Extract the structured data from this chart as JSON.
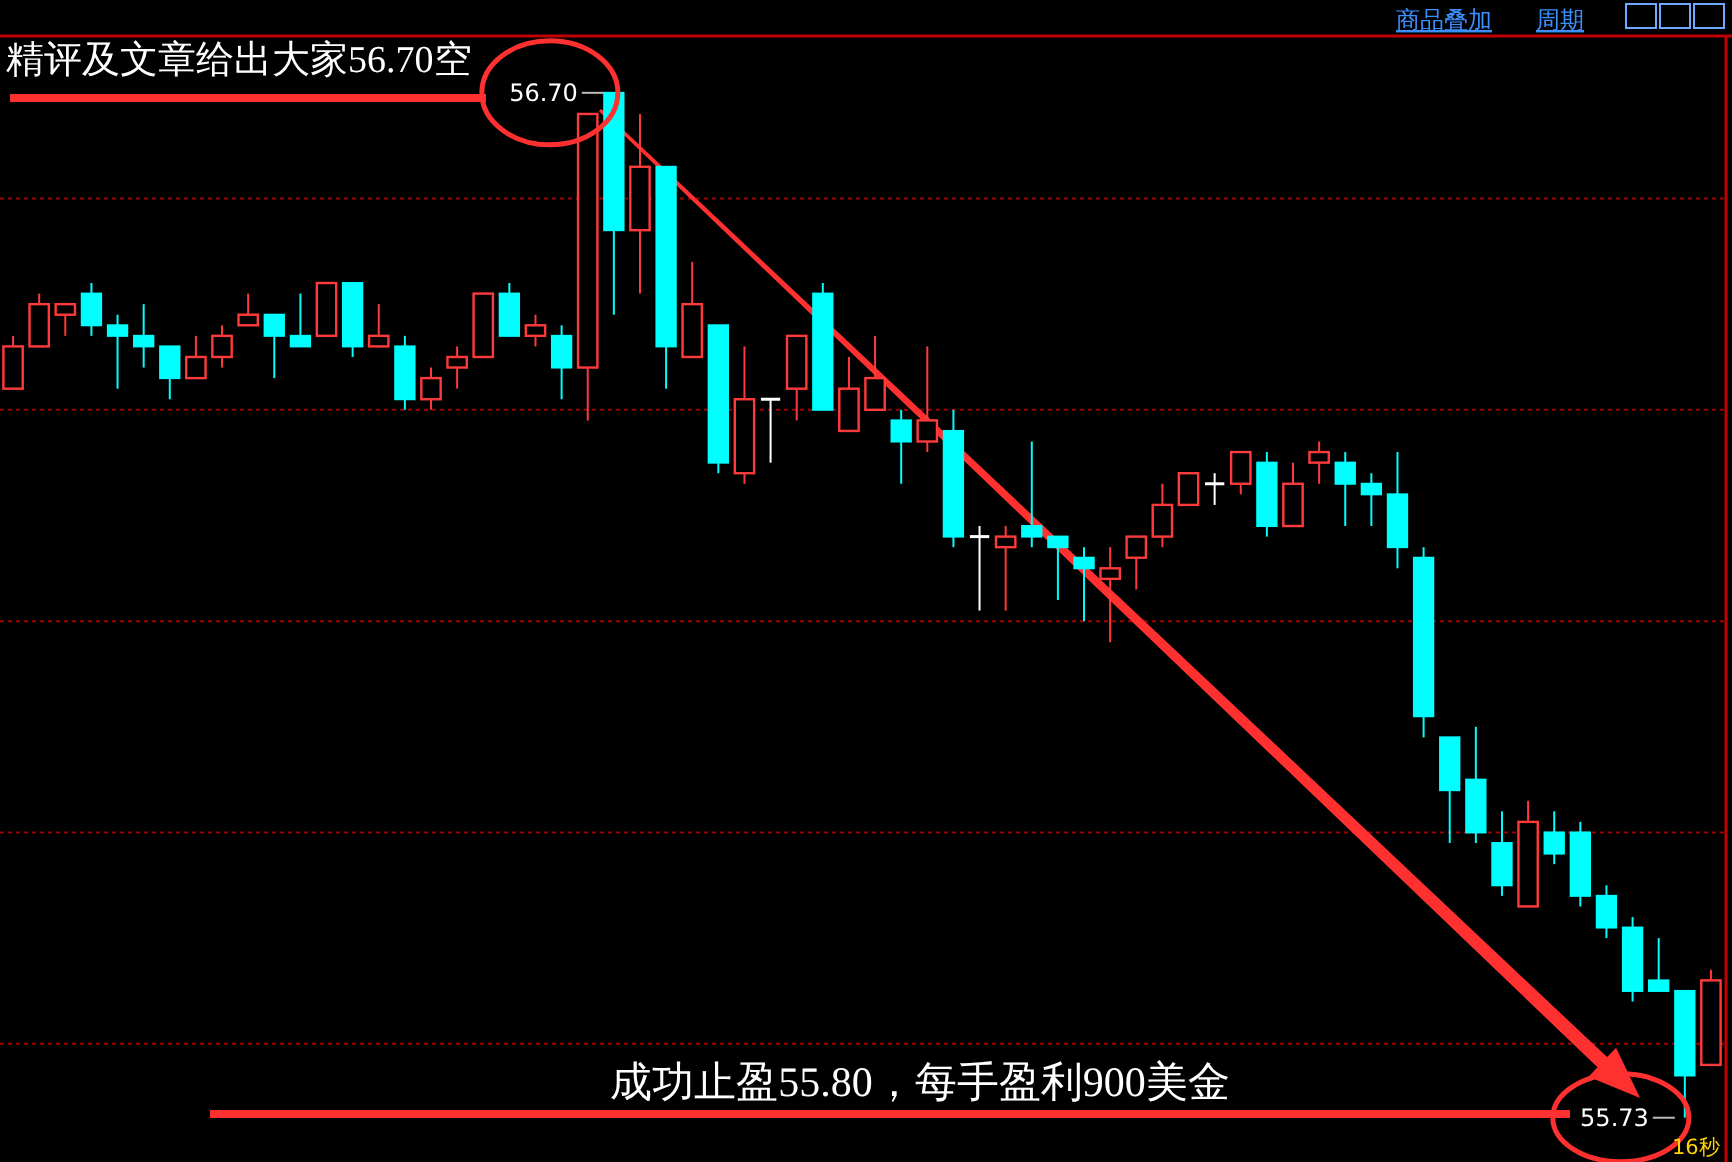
{
  "chart_data": {
    "type": "candlestick",
    "categories": [
      null,
      null,
      null,
      null,
      null,
      null,
      null,
      null,
      null,
      null,
      null,
      null,
      null,
      null,
      null,
      null,
      null,
      null,
      null,
      null,
      null,
      null,
      null,
      null,
      null,
      null,
      null,
      null,
      null,
      null,
      null,
      null,
      null,
      null,
      null,
      null,
      null,
      null,
      null,
      null,
      null,
      null,
      null,
      null,
      null,
      null,
      null,
      null,
      null,
      null,
      null,
      null,
      null,
      null,
      null,
      null,
      null,
      null,
      null,
      null,
      null,
      null,
      null,
      null,
      null,
      null
    ],
    "ohlc": [
      [
        56.42,
        56.47,
        56.42,
        56.46
      ],
      [
        56.46,
        56.51,
        56.46,
        56.5
      ],
      [
        56.49,
        56.5,
        56.47,
        56.5
      ],
      [
        56.51,
        56.52,
        56.47,
        56.48
      ],
      [
        56.48,
        56.49,
        56.42,
        56.47
      ],
      [
        56.47,
        56.5,
        56.44,
        56.46
      ],
      [
        56.46,
        56.46,
        56.41,
        56.43
      ],
      [
        56.43,
        56.47,
        56.43,
        56.45
      ],
      [
        56.45,
        56.48,
        56.44,
        56.47
      ],
      [
        56.48,
        56.51,
        56.48,
        56.49
      ],
      [
        56.49,
        56.49,
        56.43,
        56.47
      ],
      [
        56.47,
        56.51,
        56.46,
        56.46
      ],
      [
        56.47,
        56.52,
        56.47,
        56.52
      ],
      [
        56.52,
        56.52,
        56.45,
        56.46
      ],
      [
        56.46,
        56.5,
        56.46,
        56.47
      ],
      [
        56.46,
        56.47,
        56.4,
        56.41
      ],
      [
        56.41,
        56.44,
        56.4,
        56.43
      ],
      [
        56.44,
        56.46,
        56.42,
        56.45
      ],
      [
        56.45,
        56.51,
        56.45,
        56.51
      ],
      [
        56.51,
        56.52,
        56.47,
        56.47
      ],
      [
        56.47,
        56.49,
        56.46,
        56.48
      ],
      [
        56.47,
        56.48,
        56.41,
        56.44
      ],
      [
        56.44,
        56.68,
        56.39,
        56.68
      ],
      [
        56.7,
        56.7,
        56.49,
        56.57
      ],
      [
        56.57,
        56.68,
        56.51,
        56.63
      ],
      [
        56.63,
        56.63,
        56.42,
        56.46
      ],
      [
        56.45,
        56.54,
        56.45,
        56.5
      ],
      [
        56.48,
        56.48,
        56.34,
        56.35
      ],
      [
        56.34,
        56.46,
        56.33,
        56.41
      ],
      [
        56.41,
        56.41,
        56.35,
        56.41
      ],
      [
        56.42,
        56.47,
        56.39,
        56.47
      ],
      [
        56.51,
        56.52,
        56.4,
        56.4
      ],
      [
        56.38,
        56.45,
        56.38,
        56.42
      ],
      [
        56.4,
        56.47,
        56.4,
        56.43
      ],
      [
        56.39,
        56.4,
        56.33,
        56.37
      ],
      [
        56.37,
        56.46,
        56.36,
        56.39
      ],
      [
        56.38,
        56.4,
        56.27,
        56.28
      ],
      [
        56.28,
        56.29,
        56.21,
        56.28
      ],
      [
        56.27,
        56.29,
        56.21,
        56.28
      ],
      [
        56.29,
        56.37,
        56.27,
        56.28
      ],
      [
        56.28,
        56.28,
        56.22,
        56.27
      ],
      [
        56.26,
        56.27,
        56.2,
        56.25
      ],
      [
        56.24,
        56.27,
        56.18,
        56.25
      ],
      [
        56.26,
        56.28,
        56.23,
        56.28
      ],
      [
        56.28,
        56.33,
        56.27,
        56.31
      ],
      [
        56.31,
        56.34,
        56.31,
        56.34
      ],
      [
        56.33,
        56.34,
        56.31,
        56.33
      ],
      [
        56.33,
        56.36,
        56.32,
        56.36
      ],
      [
        56.35,
        56.36,
        56.28,
        56.29
      ],
      [
        56.29,
        56.35,
        56.29,
        56.33
      ],
      [
        56.35,
        56.37,
        56.33,
        56.36
      ],
      [
        56.35,
        56.36,
        56.29,
        56.33
      ],
      [
        56.33,
        56.34,
        56.29,
        56.32
      ],
      [
        56.32,
        56.36,
        56.25,
        56.27
      ],
      [
        56.26,
        56.27,
        56.09,
        56.11
      ],
      [
        56.09,
        56.09,
        55.99,
        56.04
      ],
      [
        56.05,
        56.1,
        55.99,
        56.0
      ],
      [
        55.99,
        56.02,
        55.94,
        55.95
      ],
      [
        55.93,
        56.03,
        55.93,
        56.01
      ],
      [
        56.0,
        56.02,
        55.97,
        55.98
      ],
      [
        56.0,
        56.01,
        55.93,
        55.94
      ],
      [
        55.94,
        55.95,
        55.9,
        55.91
      ],
      [
        55.91,
        55.92,
        55.84,
        55.85
      ],
      [
        55.86,
        55.9,
        55.85,
        55.85
      ],
      [
        55.85,
        55.85,
        55.73,
        55.77
      ],
      [
        55.78,
        55.87,
        55.78,
        55.86
      ]
    ],
    "colors": [
      "#ff3a3a",
      "#ff3a3a",
      "#ff3a3a",
      "#00ffff",
      "#00ffff",
      "#00ffff",
      "#00ffff",
      "#ff3a3a",
      "#ff3a3a",
      "#ff3a3a",
      "#00ffff",
      "#00ffff",
      "#ff3a3a",
      "#00ffff",
      "#ff3a3a",
      "#00ffff",
      "#ff3a3a",
      "#ff3a3a",
      "#ff3a3a",
      "#00ffff",
      "#ff3a3a",
      "#00ffff",
      "#ff3a3a",
      "#00ffff",
      "#ff3a3a",
      "#00ffff",
      "#ff3a3a",
      "#00ffff",
      "#ff3a3a",
      "#ffffff",
      "#ff3a3a",
      "#00ffff",
      "#ff3a3a",
      "#ff3a3a",
      "#00ffff",
      "#ff3a3a",
      "#00ffff",
      "#ffffff",
      "#ff3a3a",
      "#00ffff",
      "#00ffff",
      "#00ffff",
      "#ff3a3a",
      "#ff3a3a",
      "#ff3a3a",
      "#ff3a3a",
      "#ffffff",
      "#ff3a3a",
      "#00ffff",
      "#ff3a3a",
      "#ff3a3a",
      "#00ffff",
      "#00ffff",
      "#00ffff",
      "#00ffff",
      "#00ffff",
      "#00ffff",
      "#00ffff",
      "#ff3a3a",
      "#00ffff",
      "#00ffff",
      "#00ffff",
      "#00ffff",
      "#00ffff",
      "#00ffff",
      "#ff3a3a"
    ],
    "ylim": [
      55.69,
      56.75
    ],
    "yticks": [
      {
        "value": 55.8,
        "label": null
      },
      {
        "value": 56.0,
        "label": null
      },
      {
        "value": 56.2,
        "label": null
      },
      {
        "value": 56.4,
        "label": null
      },
      {
        "value": 56.6,
        "label": null
      }
    ],
    "grid": "y",
    "annotations": [
      "精评及文章给出大家56.70空",
      "成功止盈55.80，每手盈利900美金",
      "56.70",
      "55.73",
      "商品叠加",
      "周期",
      "16秒"
    ]
  }
}
